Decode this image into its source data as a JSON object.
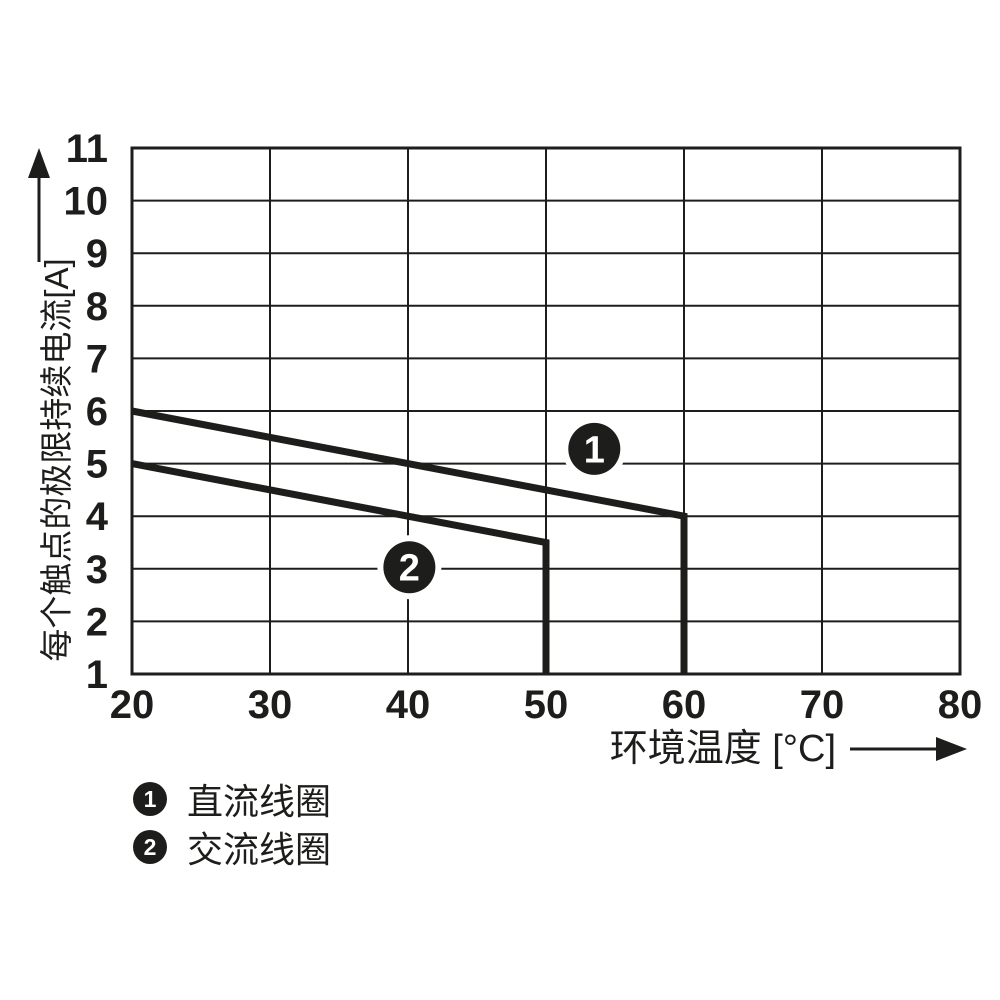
{
  "figure": {
    "background": "#ffffff",
    "ink_color": "#1d1d1b"
  },
  "chart_data": {
    "type": "line",
    "title": "",
    "xlabel": "环境温度 [°C]",
    "ylabel": "每个触点的极限持续电流[A]",
    "xlim": [
      20,
      80
    ],
    "ylim": [
      1,
      11
    ],
    "xticks": [
      20,
      30,
      40,
      50,
      60,
      70,
      80
    ],
    "yticks": [
      1,
      2,
      3,
      4,
      5,
      6,
      7,
      8,
      9,
      10,
      11
    ],
    "grid": true,
    "legend_position": "below-left",
    "series": [
      {
        "marker": "1",
        "name": "直流线圈",
        "points": [
          [
            20,
            6
          ],
          [
            60,
            4
          ],
          [
            60,
            1
          ]
        ],
        "marker_pos": [
          53.5,
          5.28
        ]
      },
      {
        "marker": "2",
        "name": "交流线圈",
        "points": [
          [
            20,
            5
          ],
          [
            50,
            3.5
          ],
          [
            50,
            1
          ]
        ],
        "marker_pos": [
          40.1,
          3.03
        ]
      }
    ]
  }
}
